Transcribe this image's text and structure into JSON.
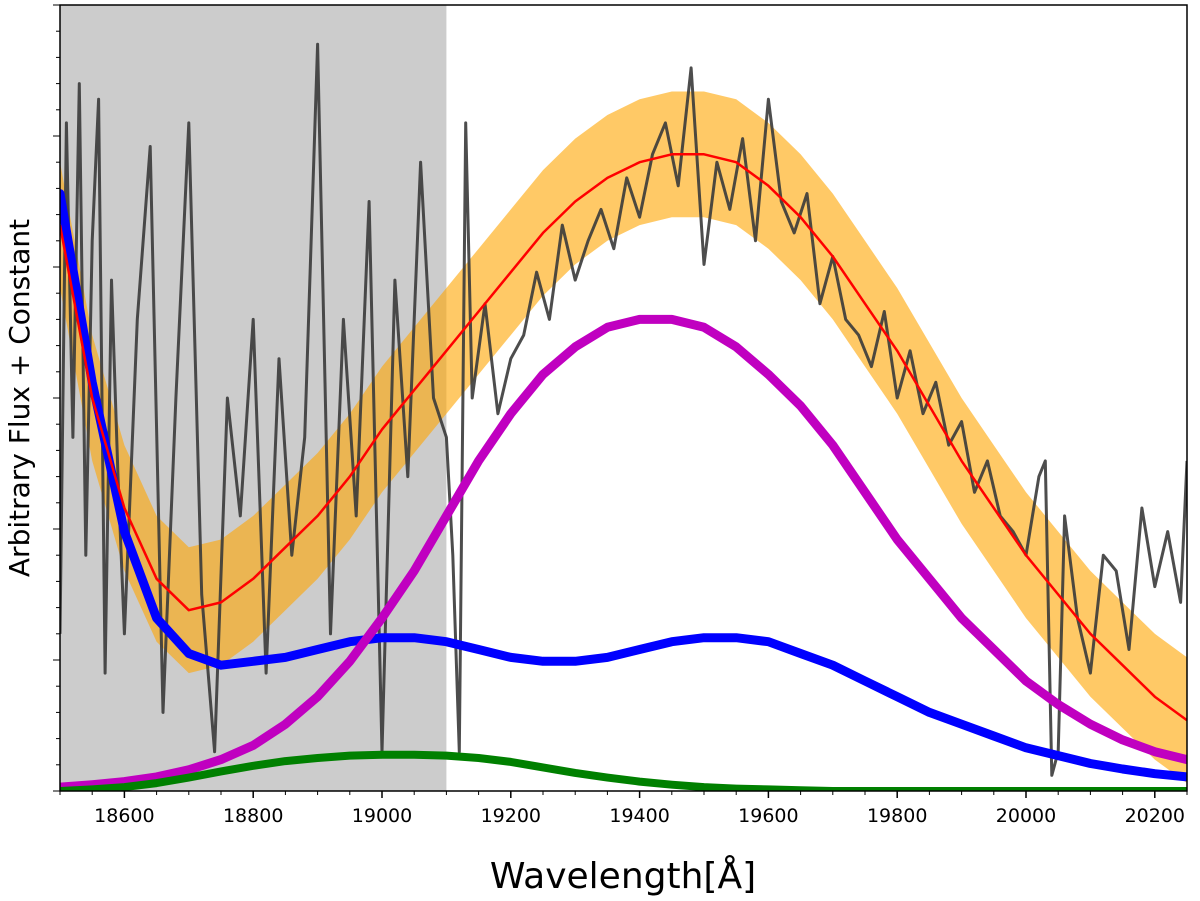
{
  "chart_data": {
    "type": "line",
    "title": "",
    "xlabel": "Wavelength[Å]",
    "ylabel": "Arbitrary Flux + Constant",
    "xlim": [
      18500,
      20250
    ],
    "ylim": [
      0,
      1
    ],
    "x_ticks": [
      18600,
      18800,
      19000,
      19200,
      19400,
      19600,
      19800,
      20000,
      20200
    ],
    "y_tick_labels": "none",
    "grid": false,
    "legend": "none",
    "shaded_region": {
      "x0": 18500,
      "x1": 19100,
      "color": "#cccccc"
    },
    "series": [
      {
        "role": "observed-spectrum",
        "color": "#3a3a3a",
        "x": [
          18500,
          18510,
          18520,
          18530,
          18540,
          18550,
          18560,
          18570,
          18580,
          18590,
          18600,
          18620,
          18640,
          18660,
          18680,
          18700,
          18720,
          18740,
          18760,
          18780,
          18800,
          18820,
          18840,
          18860,
          18880,
          18900,
          18920,
          18940,
          18960,
          18980,
          19000,
          19020,
          19040,
          19060,
          19080,
          19100,
          19110,
          19120,
          19130,
          19140,
          19160,
          19180,
          19200,
          19220,
          19240,
          19260,
          19280,
          19300,
          19320,
          19340,
          19360,
          19380,
          19400,
          19420,
          19440,
          19460,
          19480,
          19500,
          19520,
          19540,
          19560,
          19580,
          19600,
          19620,
          19640,
          19660,
          19680,
          19700,
          19720,
          19740,
          19760,
          19780,
          19800,
          19820,
          19840,
          19860,
          19880,
          19900,
          19920,
          19940,
          19960,
          19980,
          20000,
          20020,
          20030,
          20040,
          20050,
          20060,
          20080,
          20100,
          20120,
          20140,
          20160,
          20180,
          20200,
          20220,
          20240,
          20250
        ],
        "y": [
          0.2,
          0.85,
          0.45,
          0.9,
          0.3,
          0.7,
          0.88,
          0.15,
          0.65,
          0.4,
          0.2,
          0.6,
          0.82,
          0.1,
          0.5,
          0.85,
          0.25,
          0.05,
          0.5,
          0.35,
          0.6,
          0.15,
          0.55,
          0.3,
          0.45,
          0.95,
          0.2,
          0.6,
          0.35,
          0.75,
          0.05,
          0.65,
          0.4,
          0.8,
          0.5,
          0.45,
          0.3,
          0.05,
          0.85,
          0.5,
          0.62,
          0.48,
          0.55,
          0.58,
          0.66,
          0.6,
          0.72,
          0.65,
          0.7,
          0.74,
          0.69,
          0.78,
          0.73,
          0.81,
          0.85,
          0.77,
          0.92,
          0.67,
          0.8,
          0.74,
          0.83,
          0.7,
          0.88,
          0.75,
          0.71,
          0.76,
          0.62,
          0.68,
          0.6,
          0.58,
          0.54,
          0.61,
          0.5,
          0.56,
          0.48,
          0.52,
          0.44,
          0.47,
          0.38,
          0.42,
          0.35,
          0.33,
          0.3,
          0.4,
          0.42,
          0.02,
          0.05,
          0.35,
          0.22,
          0.15,
          0.3,
          0.28,
          0.18,
          0.36,
          0.26,
          0.33,
          0.24,
          0.42
        ]
      },
      {
        "role": "model-fit",
        "color": "#ff0000",
        "uncertainty_band_color": "#ffa500",
        "band_halfwidth": 0.08,
        "x": [
          18500,
          18550,
          18600,
          18650,
          18700,
          18750,
          18800,
          18850,
          18900,
          18950,
          19000,
          19050,
          19100,
          19150,
          19200,
          19250,
          19300,
          19350,
          19400,
          19450,
          19500,
          19550,
          19600,
          19650,
          19700,
          19750,
          19800,
          19850,
          19900,
          19950,
          20000,
          20050,
          20100,
          20150,
          20200,
          20250
        ],
        "y": [
          0.72,
          0.5,
          0.36,
          0.27,
          0.23,
          0.24,
          0.27,
          0.31,
          0.35,
          0.4,
          0.46,
          0.51,
          0.56,
          0.61,
          0.66,
          0.71,
          0.75,
          0.78,
          0.8,
          0.81,
          0.81,
          0.8,
          0.77,
          0.73,
          0.68,
          0.62,
          0.56,
          0.49,
          0.42,
          0.36,
          0.3,
          0.25,
          0.2,
          0.16,
          0.12,
          0.09
        ]
      },
      {
        "role": "component-blue",
        "color": "#0000ff",
        "x": [
          18500,
          18550,
          18600,
          18650,
          18700,
          18750,
          18800,
          18850,
          18900,
          18950,
          19000,
          19050,
          19100,
          19150,
          19200,
          19250,
          19300,
          19350,
          19400,
          19450,
          19500,
          19550,
          19600,
          19650,
          19700,
          19750,
          19800,
          19850,
          19900,
          19950,
          20000,
          20050,
          20100,
          20150,
          20200,
          20250
        ],
        "y": [
          0.76,
          0.52,
          0.33,
          0.22,
          0.175,
          0.16,
          0.165,
          0.17,
          0.18,
          0.19,
          0.195,
          0.195,
          0.19,
          0.18,
          0.17,
          0.165,
          0.165,
          0.17,
          0.18,
          0.19,
          0.195,
          0.195,
          0.19,
          0.175,
          0.16,
          0.14,
          0.12,
          0.1,
          0.085,
          0.07,
          0.055,
          0.045,
          0.035,
          0.028,
          0.022,
          0.018
        ]
      },
      {
        "role": "component-magenta",
        "color": "#c000c0",
        "x": [
          18500,
          18550,
          18600,
          18650,
          18700,
          18750,
          18800,
          18850,
          18900,
          18950,
          19000,
          19050,
          19100,
          19150,
          19200,
          19250,
          19300,
          19350,
          19400,
          19450,
          19500,
          19550,
          19600,
          19650,
          19700,
          19750,
          19800,
          19850,
          19900,
          19950,
          20000,
          20050,
          20100,
          20150,
          20200,
          20250
        ],
        "y": [
          0.005,
          0.008,
          0.012,
          0.018,
          0.027,
          0.04,
          0.058,
          0.085,
          0.12,
          0.165,
          0.22,
          0.28,
          0.35,
          0.42,
          0.48,
          0.53,
          0.565,
          0.59,
          0.6,
          0.6,
          0.59,
          0.565,
          0.53,
          0.49,
          0.44,
          0.38,
          0.32,
          0.27,
          0.22,
          0.18,
          0.14,
          0.11,
          0.085,
          0.065,
          0.05,
          0.04
        ]
      },
      {
        "role": "component-green",
        "color": "#008000",
        "x": [
          18500,
          18550,
          18600,
          18650,
          18700,
          18750,
          18800,
          18850,
          18900,
          18950,
          19000,
          19050,
          19100,
          19150,
          19200,
          19250,
          19300,
          19350,
          19400,
          19450,
          19500,
          19550,
          19600,
          19650,
          19700,
          19750,
          19800,
          19850,
          19900,
          19950,
          20000,
          20050,
          20100,
          20150,
          20200,
          20250
        ],
        "y": [
          0.0,
          0.002,
          0.005,
          0.01,
          0.017,
          0.025,
          0.032,
          0.038,
          0.042,
          0.045,
          0.046,
          0.046,
          0.045,
          0.042,
          0.037,
          0.03,
          0.023,
          0.017,
          0.012,
          0.008,
          0.005,
          0.003,
          0.002,
          0.001,
          0.0,
          0.0,
          0.0,
          0.0,
          0.0,
          0.0,
          0.0,
          0.0,
          0.0,
          0.0,
          0.0,
          0.0
        ]
      }
    ]
  }
}
